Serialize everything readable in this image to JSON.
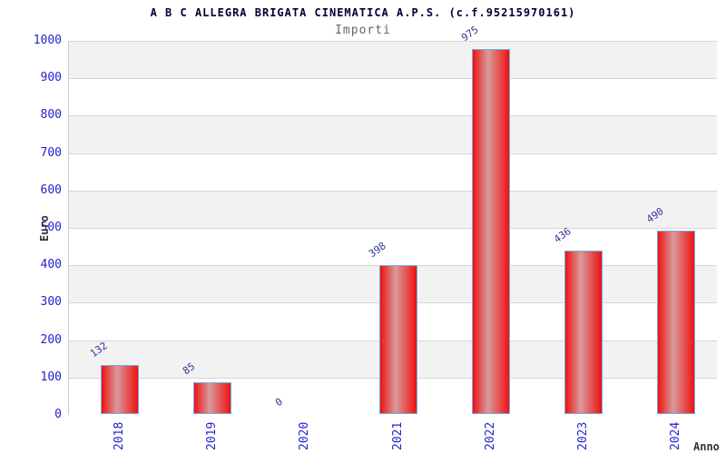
{
  "title": "A B C ALLEGRA BRIGATA CINEMATICA A.P.S. (c.f.95215970161)",
  "subtitle": "Importi",
  "axes": {
    "x_label": "Anno",
    "y_label": "Euro"
  },
  "chart_data": {
    "type": "bar",
    "title": "A B C ALLEGRA BRIGATA CINEMATICA A.P.S. (c.f.95215970161)",
    "subtitle": "Importi",
    "xlabel": "Anno",
    "ylabel": "Euro",
    "categories": [
      "2018",
      "2019",
      "2020",
      "2021",
      "2022",
      "2023",
      "2024"
    ],
    "values": [
      132,
      85,
      0,
      398,
      975,
      436,
      490
    ],
    "bar_labels": [
      "132",
      "85",
      "0",
      "398",
      "975",
      "436",
      "490"
    ],
    "ylim": [
      0,
      1000
    ],
    "ytick_step": 100,
    "yticks": [
      0,
      100,
      200,
      300,
      400,
      500,
      600,
      700,
      800,
      900,
      1000
    ],
    "legend": "none",
    "grid": "horizontal alternating gray/white bands with light gridlines every 100",
    "colors": {
      "bar_fill_edge": "#ee1111",
      "bar_fill_center": "#d89b9b",
      "bar_border": "#6fb0e0",
      "tick_label": "#2323cc",
      "bar_value_label": "#333399",
      "band_gray": "#f2f2f2",
      "band_white": "#ffffff",
      "gridline": "#d6d6d6",
      "axis_line": "#c9c9c9",
      "title": "#000033",
      "subtitle": "#666666",
      "axis_title": "#333333"
    }
  }
}
